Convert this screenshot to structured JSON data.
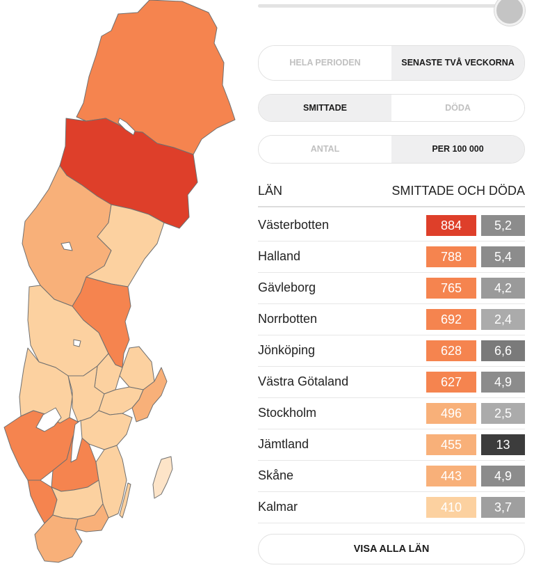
{
  "period_toggle": {
    "options": [
      "HELA PERIODEN",
      "SENASTE TVÅ VECKORNA"
    ],
    "selected": "SENASTE TVÅ VECKORNA"
  },
  "metric_toggle": {
    "options": [
      "SMITTADE",
      "DÖDA"
    ],
    "selected": "SMITTADE"
  },
  "unit_toggle": {
    "options": [
      "ANTAL",
      "PER 100 000"
    ],
    "selected": "PER 100 000"
  },
  "slider": {
    "value": 1.0
  },
  "table": {
    "col_county": "LÄN",
    "col_values": "SMITTADE OCH DÖDA",
    "rows": [
      {
        "name": "Västerbotten",
        "cases": "884",
        "deaths": "5,2",
        "case_color": "#de3f2a",
        "death_color": "#8c8c8c"
      },
      {
        "name": "Halland",
        "cases": "788",
        "deaths": "5,4",
        "case_color": "#f5844f",
        "death_color": "#8c8c8c"
      },
      {
        "name": "Gävleborg",
        "cases": "765",
        "deaths": "4,2",
        "case_color": "#f5844f",
        "death_color": "#9a9a9a"
      },
      {
        "name": "Norrbotten",
        "cases": "692",
        "deaths": "2,4",
        "case_color": "#f5844f",
        "death_color": "#ababab"
      },
      {
        "name": "Jönköping",
        "cases": "628",
        "deaths": "6,6",
        "case_color": "#f5844f",
        "death_color": "#7a7a7a"
      },
      {
        "name": "Västra Götaland",
        "cases": "627",
        "deaths": "4,9",
        "case_color": "#f5844f",
        "death_color": "#8c8c8c"
      },
      {
        "name": "Stockholm",
        "cases": "496",
        "deaths": "2,5",
        "case_color": "#f8b079",
        "death_color": "#ababab"
      },
      {
        "name": "Jämtland",
        "cases": "455",
        "deaths": "13",
        "case_color": "#f8b079",
        "death_color": "#3c3c3c"
      },
      {
        "name": "Skåne",
        "cases": "443",
        "deaths": "4,9",
        "case_color": "#f8b079",
        "death_color": "#8c8c8c"
      },
      {
        "name": "Kalmar",
        "cases": "410",
        "deaths": "3,7",
        "case_color": "#fcd1a0",
        "death_color": "#9f9f9f"
      }
    ]
  },
  "show_all_label": "VISA ALLA LÄN",
  "map": {
    "colors": {
      "dark_red": "#de3f2a",
      "orange": "#f5844f",
      "light_orange": "#f8b079",
      "pale": "#fcd1a0",
      "very_pale": "#fde4c8",
      "lake": "#ffffff"
    }
  }
}
